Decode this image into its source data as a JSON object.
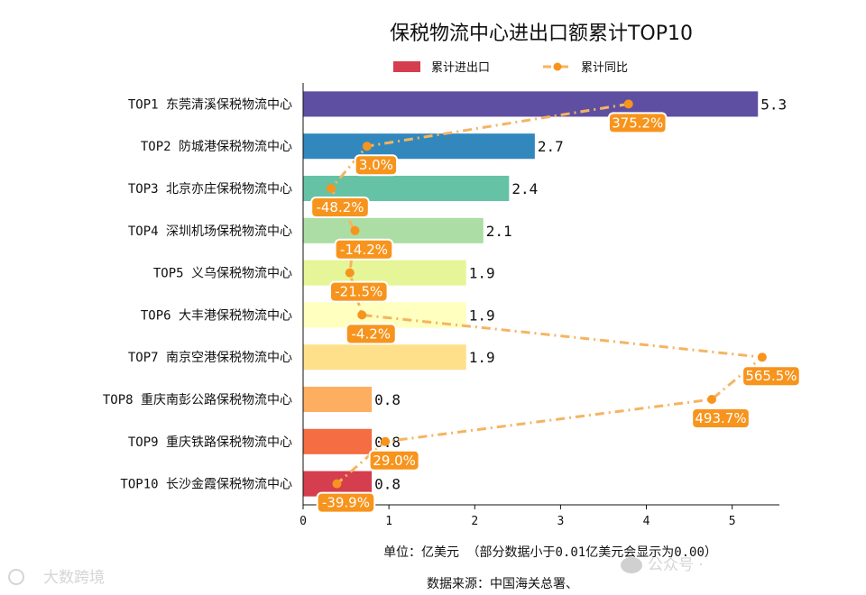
{
  "chart_data": {
    "type": "bar",
    "orientation": "horizontal",
    "title": "保税物流中心进出口额累计TOP10",
    "categories": [
      "TOP1 东莞清溪保税物流中心",
      "TOP2 防城港保税物流中心",
      "TOP3 北京亦庄保税物流中心",
      "TOP4 深圳机场保税物流中心",
      "TOP5 义乌保税物流中心",
      "TOP6 大丰港保税物流中心",
      "TOP7 南京空港保税物流中心",
      "TOP8 重庆南彭公路保税物流中心",
      "TOP9 重庆铁路保税物流中心",
      "TOP10 长沙金霞保税物流中心"
    ],
    "series": [
      {
        "name": "累计进出口",
        "type": "bar",
        "values": [
          5.3,
          2.7,
          2.4,
          2.1,
          1.9,
          1.9,
          1.9,
          0.8,
          0.8,
          0.8
        ],
        "labels": [
          "5.3",
          "2.7",
          "2.4",
          "2.1",
          "1.9",
          "1.9",
          "1.9",
          "0.8",
          "0.8",
          "0.8"
        ],
        "colors": [
          "#5e4fa2",
          "#3288bd",
          "#66c2a5",
          "#abdda4",
          "#e6f598",
          "#ffffbf",
          "#fee08b",
          "#fdae61",
          "#f46d43",
          "#d53e4f"
        ]
      },
      {
        "name": "累计同比",
        "type": "line",
        "values": [
          375.2,
          3.0,
          -48.2,
          -14.2,
          -21.5,
          -4.2,
          565.5,
          493.7,
          29.0,
          -39.9
        ],
        "labels": [
          "375.2%",
          "3.0%",
          "-48.2%",
          "-14.2%",
          "-21.5%",
          "-4.2%",
          "565.5%",
          "493.7%",
          "29.0%",
          "-39.9%"
        ],
        "color": "#f5b461",
        "label_bg": "#f7941d"
      }
    ],
    "xlim": [
      0,
      5.55
    ],
    "xticks": [
      0,
      1,
      2,
      3,
      4,
      5
    ],
    "secondary_xlim": [
      -88,
      590
    ],
    "xlabel": "单位：亿美元 （部分数据小于0.01亿美元会显示为0.00）",
    "legend_position": "top-center",
    "grid": false
  },
  "notes": {
    "unit": "单位：亿美元 （部分数据小于0.01亿美元会显示为0.00）",
    "source": "数据来源：中国海关总署、"
  },
  "watermarks": {
    "left": "大数跨境",
    "right": "公众号 ·"
  }
}
